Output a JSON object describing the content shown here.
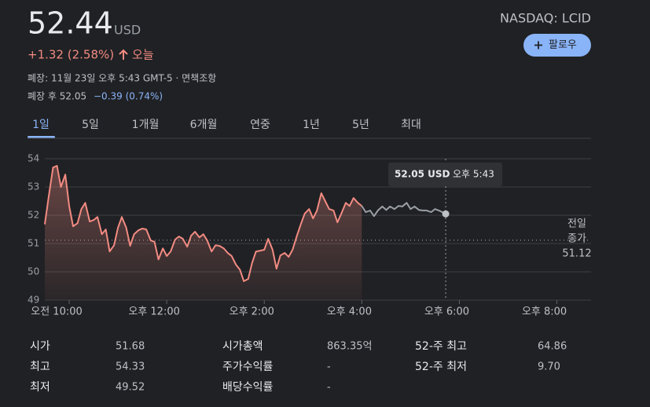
{
  "header": {
    "price": "52.44",
    "currency": "USD",
    "change": "+1.32 (2.58%)",
    "change_period": "오늘",
    "closed_note": "폐장: 11월 23일 오후 5:43 GMT-5 · 면책조항",
    "after_hours": "폐장 후 52.05",
    "after_hours_change": "−0.39 (0.74%)",
    "ticker": "NASDAQ: LCID",
    "follow_button": "팔로우"
  },
  "tabs": [
    "1일",
    "5일",
    "1개월",
    "6개월",
    "연중",
    "1년",
    "5년",
    "최대"
  ],
  "chart_data": {
    "type": "line",
    "series": [
      {
        "color": "#f28b82",
        "x": [
          9.5,
          9.58,
          9.67,
          9.75,
          9.83,
          9.92,
          10,
          10.08,
          10.17,
          10.25,
          10.33,
          10.42,
          10.5,
          10.58,
          10.67,
          10.75,
          10.83,
          10.92,
          11,
          11.08,
          11.17,
          11.25,
          11.33,
          11.42,
          11.5,
          11.58,
          11.67,
          11.75,
          11.83,
          11.92,
          12,
          12.08,
          12.17,
          12.25,
          12.33,
          12.42,
          12.5,
          12.58,
          12.67,
          12.75,
          12.83,
          12.92,
          13,
          13.08,
          13.17,
          13.25,
          13.33,
          13.42,
          13.5,
          13.58,
          13.67,
          13.75,
          13.83,
          13.92,
          14,
          14.08,
          14.17,
          14.25,
          14.33,
          14.42,
          14.5,
          14.58,
          14.67,
          14.75,
          14.83,
          14.92,
          15,
          15.08,
          15.17,
          15.25,
          15.33,
          15.42,
          15.5,
          15.58,
          15.67,
          15.75,
          15.83,
          15.92,
          16
        ],
        "values": [
          51.68,
          52.67,
          53.69,
          53.75,
          53.0,
          53.44,
          52.33,
          51.61,
          51.72,
          52.22,
          52.44,
          51.78,
          51.83,
          51.94,
          51.33,
          51.5,
          50.72,
          50.94,
          51.56,
          51.94,
          51.56,
          50.92,
          51.33,
          51.47,
          51.53,
          51.5,
          51.11,
          51.06,
          50.44,
          50.83,
          50.56,
          50.72,
          51.14,
          51.25,
          51.17,
          50.89,
          51.28,
          51.42,
          51.22,
          51.33,
          51.11,
          50.72,
          50.94,
          50.92,
          50.83,
          50.67,
          50.56,
          50.25,
          50.08,
          49.67,
          49.75,
          50.31,
          50.72,
          50.75,
          50.78,
          51.17,
          50.78,
          50.11,
          50.58,
          50.67,
          50.53,
          50.78,
          51.28,
          51.69,
          52.06,
          52.22,
          51.89,
          52.17,
          52.78,
          52.5,
          52.22,
          52.17,
          51.75,
          52.06,
          52.44,
          52.33,
          52.61,
          52.44,
          52.33
        ]
      },
      {
        "color": "#9aa0a6",
        "x": [
          16,
          16.08,
          16.17,
          16.25,
          16.33,
          16.42,
          16.5,
          16.58,
          16.67,
          16.75,
          16.83,
          16.92,
          17,
          17.08,
          17.17,
          17.25,
          17.33,
          17.42,
          17.5,
          17.58,
          17.72
        ],
        "values": [
          52.33,
          52.11,
          52.17,
          51.97,
          52.17,
          52.31,
          52.19,
          52.31,
          52.22,
          52.33,
          52.31,
          52.44,
          52.22,
          52.31,
          52.19,
          52.17,
          52.17,
          52.11,
          52.22,
          52.17,
          52.05
        ]
      }
    ],
    "xlim": [
      9.5,
      20.7
    ],
    "xticks": [
      {
        "value": 10,
        "label": "오전 10:00"
      },
      {
        "value": 12,
        "label": "오후 12:00"
      },
      {
        "value": 14,
        "label": "오후 2:00"
      },
      {
        "value": 16,
        "label": "오후 4:00"
      },
      {
        "value": 18,
        "label": "오후 6:00"
      },
      {
        "value": 20,
        "label": "오후 8:00"
      }
    ],
    "ylim": [
      49,
      54
    ],
    "yticks": [
      49,
      50,
      51,
      52,
      53,
      54
    ],
    "grid": true,
    "reference_line": {
      "label_lines": [
        "전일",
        "종가"
      ],
      "value": 51.12
    },
    "tooltip": {
      "price": "52.05 USD",
      "time": "오후 5:43"
    }
  },
  "stats": [
    [
      [
        "시가",
        "51.68"
      ],
      [
        "시가총액",
        "863.35억"
      ],
      [
        "52-주 최고",
        "64.86"
      ]
    ],
    [
      [
        "최고",
        "54.33"
      ],
      [
        "주가수익률",
        "-"
      ],
      [
        "52-주 최저",
        "9.70"
      ]
    ],
    [
      [
        "최저",
        "49.52"
      ],
      [
        "배당수익률",
        "-"
      ]
    ]
  ]
}
